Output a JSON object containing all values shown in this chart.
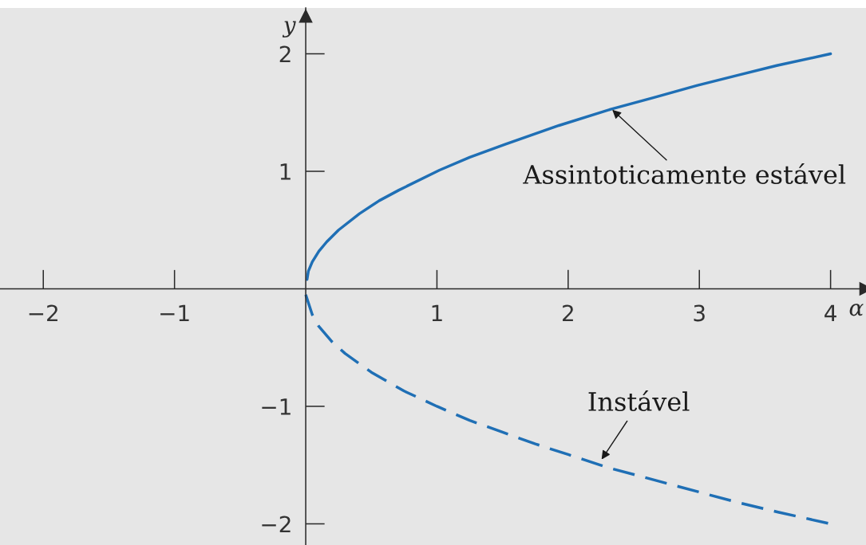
{
  "chart_data": {
    "type": "line",
    "xlabel": "α",
    "ylabel": "y",
    "xlim": [
      -2.33,
      4.27
    ],
    "ylim": [
      -2.18,
      2.39
    ],
    "xticks": [
      {
        "value": -2,
        "label": "−2"
      },
      {
        "value": -1,
        "label": "−1"
      },
      1,
      2,
      3,
      4
    ],
    "yticks": [
      {
        "value": -2,
        "label": "−2"
      },
      {
        "value": -1,
        "label": "−1"
      },
      1,
      2
    ],
    "series": [
      {
        "color": "#1f6fb5",
        "line_style": "solid",
        "x": [
          0.01,
          0.02,
          0.05,
          0.1,
          0.16,
          0.25,
          0.41,
          0.56,
          0.71,
          1.02,
          1.25,
          1.52,
          1.93,
          2.33,
          2.66,
          2.98,
          3.3,
          3.59,
          4.0
        ],
        "values": [
          0.08,
          0.15,
          0.23,
          0.32,
          0.4,
          0.5,
          0.64,
          0.75,
          0.84,
          1.01,
          1.12,
          1.23,
          1.39,
          1.53,
          1.63,
          1.73,
          1.82,
          1.9,
          2.0
        ]
      },
      {
        "color": "#1f6fb5",
        "line_style": "dashed",
        "x": [
          0,
          0.05,
          0.1,
          0.2,
          0.3,
          0.5,
          0.75,
          1,
          1.25,
          1.5,
          1.75,
          2,
          2.3,
          2.6,
          3,
          3.3,
          3.6,
          4.0
        ],
        "values": [
          -0.05,
          -0.22,
          -0.32,
          -0.45,
          -0.55,
          -0.71,
          -0.87,
          -1.0,
          -1.12,
          -1.22,
          -1.32,
          -1.41,
          -1.52,
          -1.61,
          -1.73,
          -1.82,
          -1.9,
          -2.0
        ]
      }
    ],
    "annotations": [
      {
        "text": "Assintoticamente estável",
        "x": 2.33,
        "y": 1.53
      },
      {
        "text": "Instável",
        "x": 2.25,
        "y": -1.46
      }
    ]
  }
}
